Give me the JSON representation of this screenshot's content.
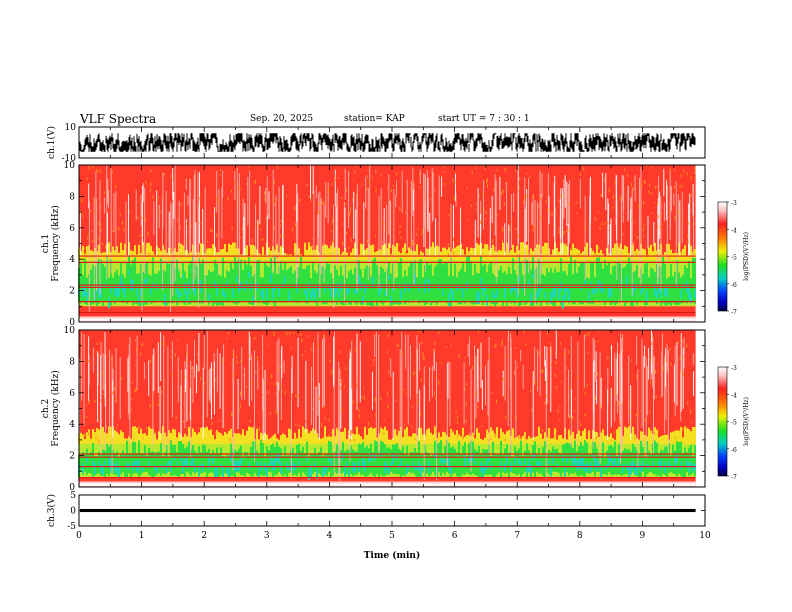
{
  "header": {
    "title": "VLF Spectra",
    "date": "Sep. 20, 2025",
    "station": "station= KAP",
    "start": "start  UT  =   7 : 30 : 1"
  },
  "chart_data": [
    {
      "type": "line",
      "panel": "ch1-waveform",
      "ylabel": "ch.1(V)",
      "ylim": [
        -10,
        10
      ],
      "yticks": [
        "10",
        "-10"
      ],
      "xlim": [
        0,
        10
      ],
      "signal_range": [
        -6,
        6
      ],
      "data_end": 9.85
    },
    {
      "type": "heatmap",
      "panel": "ch1-spectrogram",
      "ylabel": "ch.1\nFrequency (kHz)",
      "ylim": [
        0,
        10
      ],
      "yticks": [
        "0",
        "2",
        "4",
        "6",
        "8",
        "10"
      ],
      "xlim": [
        0,
        10
      ],
      "data_end": 9.85,
      "green_band_khz": [
        1.0,
        4.2
      ],
      "line_freqs_khz": [
        0.6,
        1.3,
        2.2,
        2.35,
        3.8,
        4.2
      ],
      "colorbar": {
        "label": "log(PSD)(V²/Hz)",
        "ticks": [
          "-3",
          "-4",
          "-5",
          "-6",
          "-7"
        ],
        "range": [
          -7,
          -3
        ]
      }
    },
    {
      "type": "heatmap",
      "panel": "ch2-spectrogram",
      "ylabel": "ch.2\nFrequency (kHz)",
      "ylim": [
        0,
        10
      ],
      "yticks": [
        "0",
        "2",
        "4",
        "6",
        "8",
        "10"
      ],
      "xlim": [
        0,
        10
      ],
      "data_end": 9.85,
      "green_band_khz": [
        0.6,
        3.0
      ],
      "line_freqs_khz": [
        0.6,
        1.3,
        1.9,
        2.1
      ],
      "colorbar": {
        "label": "log(PSD)(V²/Hz)",
        "ticks": [
          "-3",
          "-4",
          "-5",
          "-6",
          "-7"
        ],
        "range": [
          -7,
          -3
        ]
      }
    },
    {
      "type": "line",
      "panel": "ch3-waveform",
      "ylabel": "ch.3(V)",
      "ylim": [
        -5,
        5
      ],
      "yticks": [
        "5",
        "0",
        "-5"
      ],
      "xlim": [
        0,
        10
      ],
      "signal_range": [
        -0.5,
        0.5
      ],
      "data_end": 9.85,
      "xlabel": "Time (min)",
      "xticks": [
        "0",
        "1",
        "2",
        "3",
        "4",
        "5",
        "6",
        "7",
        "8",
        "9",
        "10"
      ]
    }
  ]
}
